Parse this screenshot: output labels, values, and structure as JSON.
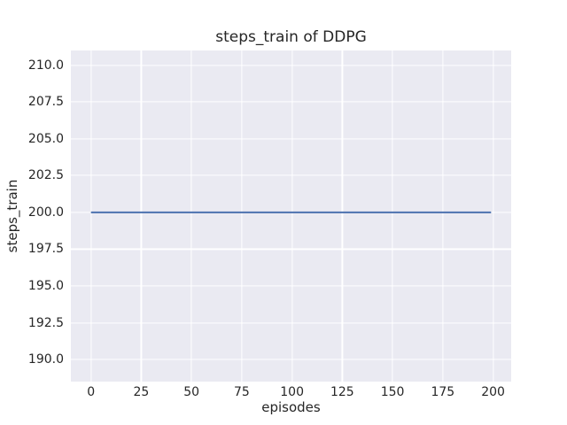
{
  "chart_data": {
    "type": "line",
    "title": "steps_train of DDPG",
    "xlabel": "episodes",
    "ylabel": "steps_train",
    "x": [
      0,
      199
    ],
    "series": [
      {
        "name": "steps_train",
        "color": "#4c72b0",
        "y": [
          200,
          200
        ]
      }
    ],
    "xlim": [
      -10,
      209
    ],
    "ylim": [
      188.5,
      211
    ],
    "xticks": [
      {
        "v": 0,
        "label": "0"
      },
      {
        "v": 25,
        "label": "25"
      },
      {
        "v": 50,
        "label": "50"
      },
      {
        "v": 75,
        "label": "75"
      },
      {
        "v": 100,
        "label": "100"
      },
      {
        "v": 125,
        "label": "125"
      },
      {
        "v": 150,
        "label": "150"
      },
      {
        "v": 175,
        "label": "175"
      },
      {
        "v": 200,
        "label": "200"
      }
    ],
    "yticks": [
      {
        "v": 190,
        "label": "190.0"
      },
      {
        "v": 192.5,
        "label": "192.5"
      },
      {
        "v": 195,
        "label": "195.0"
      },
      {
        "v": 197.5,
        "label": "197.5"
      },
      {
        "v": 200,
        "label": "200.0"
      },
      {
        "v": 202.5,
        "label": "202.5"
      },
      {
        "v": 205,
        "label": "205.0"
      },
      {
        "v": 207.5,
        "label": "207.5"
      },
      {
        "v": 210,
        "label": "210.0"
      }
    ],
    "grid": true,
    "legend": "none",
    "style": {
      "figure_bg": "#ffffff",
      "axes_bg": "#eaeaf2",
      "grid_color": "#ffffff",
      "text_color": "#262626",
      "line_width": 2
    }
  }
}
